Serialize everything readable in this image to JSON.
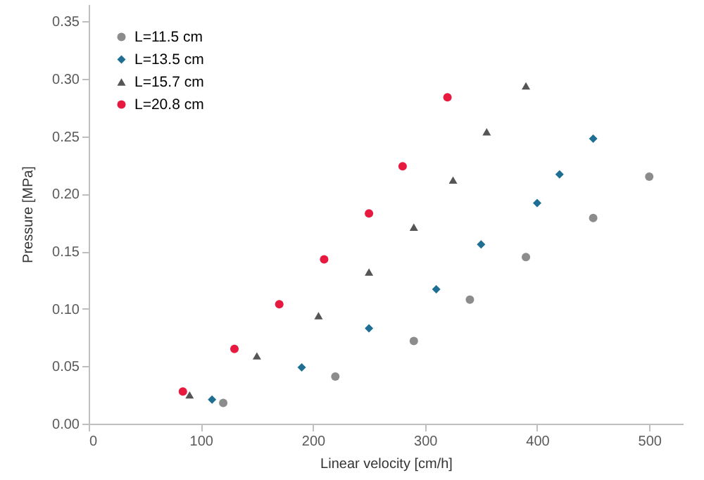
{
  "chart_data": {
    "type": "scatter",
    "xlabel": "Linear velocity [cm/h]",
    "ylabel": "Pressure [MPa]",
    "xlim": [
      0,
      530
    ],
    "xticks": [
      0,
      100,
      200,
      300,
      400,
      500
    ],
    "ylim": [
      0,
      0.365
    ],
    "yticks": [
      {
        "value": 0,
        "label": "0.00"
      },
      {
        "value": 0.05,
        "label": "0.05"
      },
      {
        "value": 0.1,
        "label": "0.10"
      },
      {
        "value": 0.15,
        "label": "0.15"
      },
      {
        "value": 0.2,
        "label": "0.20"
      },
      {
        "value": 0.25,
        "label": "0.25"
      },
      {
        "value": 0.3,
        "label": "0.30"
      },
      {
        "value": 0.35,
        "label": "0.35"
      }
    ],
    "grid": false,
    "legend": "top left",
    "series": [
      {
        "name": "L=11.5 cm",
        "color": "#8c8c8c",
        "marker": "circle",
        "x": [
          120,
          220,
          290,
          340,
          390,
          450,
          500
        ],
        "values": [
          0.018,
          0.041,
          0.072,
          0.108,
          0.145,
          0.179,
          0.215
        ]
      },
      {
        "name": "L=13.5 cm",
        "color": "#1f6e94",
        "marker": "diamond",
        "x": [
          110,
          190,
          250,
          310,
          350,
          400,
          420,
          450
        ],
        "values": [
          0.021,
          0.049,
          0.083,
          0.117,
          0.156,
          0.192,
          0.217,
          0.248
        ]
      },
      {
        "name": "L=15.7 cm",
        "color": "#555555",
        "marker": "triangle",
        "x": [
          90,
          150,
          205,
          250,
          290,
          325,
          355,
          390
        ],
        "values": [
          0.025,
          0.059,
          0.094,
          0.132,
          0.171,
          0.212,
          0.254,
          0.294
        ]
      },
      {
        "name": "L=20.8 cm",
        "color": "#e8193f",
        "marker": "circle",
        "x": [
          84,
          130,
          170,
          210,
          250,
          280,
          320
        ],
        "values": [
          0.028,
          0.065,
          0.104,
          0.143,
          0.183,
          0.224,
          0.284
        ]
      }
    ]
  }
}
